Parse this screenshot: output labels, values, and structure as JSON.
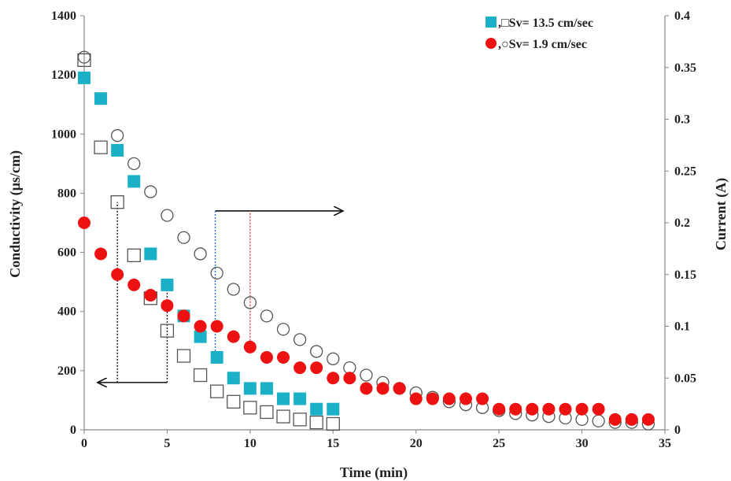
{
  "chart_data": {
    "type": "scatter",
    "title": "",
    "xlabel": "Time (min)",
    "ylabel_left": "Conductivity (µs/cm)",
    "ylabel_right": "Current (A)",
    "xlim": [
      0,
      35
    ],
    "ylim_left": [
      0,
      1400
    ],
    "ylim_right": [
      0,
      0.4
    ],
    "x_ticks": [
      "0",
      "5",
      "10",
      "15",
      "20",
      "25",
      "30",
      "35"
    ],
    "y_left_ticks": [
      "0",
      "200",
      "400",
      "600",
      "800",
      "1000",
      "1200",
      "1400"
    ],
    "y_right_ticks": [
      "0",
      "0.05",
      "0.1",
      "0.15",
      "0.2",
      "0.25",
      "0.3",
      "0.35",
      "0.4"
    ],
    "grid": false,
    "legend_position": "top-right",
    "legend": [
      {
        "text": ",□Sv= 13.5 cm/sec",
        "filled_marker": "square"
      },
      {
        "text": ",○Sv= 1.9 cm/sec",
        "filled_marker": "circle"
      }
    ],
    "colors": {
      "teal": "#1ab0c8",
      "red": "#ee1111",
      "open_marker": "#555555",
      "axis": "#888888",
      "arrow": "#111111",
      "blue_dash": "#2b6fd6",
      "red_dash": "#ee3333",
      "black_dash": "#111111"
    },
    "series": [
      {
        "marker": "filled-square",
        "axis": "left",
        "x": [
          0,
          1,
          2,
          3,
          4,
          5,
          6,
          7,
          8,
          9,
          10,
          11,
          12,
          13,
          14,
          15
        ],
        "values": [
          1190,
          1120,
          945,
          840,
          595,
          490,
          385,
          315,
          245,
          175,
          140,
          140,
          105,
          105,
          70,
          70
        ]
      },
      {
        "marker": "open-square",
        "axis": "left",
        "x": [
          0,
          1,
          2,
          3,
          4,
          5,
          6,
          7,
          8,
          9,
          10,
          11,
          12,
          13,
          14,
          15
        ],
        "values": [
          1250,
          955,
          770,
          590,
          445,
          335,
          250,
          185,
          130,
          95,
          75,
          60,
          45,
          35,
          25,
          20
        ]
      },
      {
        "marker": "filled-circle",
        "axis": "left",
        "x": [
          0,
          1,
          2,
          3,
          4,
          5,
          6,
          7,
          8,
          9,
          10,
          11,
          12,
          13,
          14,
          15,
          16,
          17,
          18,
          19,
          20,
          21,
          22,
          23,
          24,
          25,
          26,
          27,
          28,
          29,
          30,
          31,
          32,
          33,
          34
        ],
        "values": [
          700,
          595,
          525,
          490,
          455,
          420,
          385,
          350,
          350,
          315,
          280,
          245,
          245,
          210,
          210,
          175,
          175,
          140,
          140,
          140,
          105,
          105,
          105,
          105,
          105,
          70,
          70,
          70,
          70,
          70,
          70,
          70,
          35,
          35,
          35
        ]
      },
      {
        "marker": "open-circle",
        "axis": "left",
        "x": [
          0,
          2,
          3,
          4,
          5,
          6,
          7,
          8,
          9,
          10,
          11,
          12,
          13,
          14,
          15,
          16,
          17,
          18,
          19,
          20,
          21,
          22,
          23,
          24,
          25,
          26,
          27,
          28,
          29,
          30,
          31,
          32,
          33,
          34
        ],
        "values": [
          1260,
          995,
          900,
          805,
          725,
          650,
          595,
          530,
          475,
          430,
          385,
          340,
          305,
          265,
          240,
          210,
          185,
          160,
          140,
          125,
          110,
          95,
          85,
          75,
          65,
          55,
          50,
          45,
          40,
          35,
          30,
          25,
          25,
          20
        ]
      }
    ],
    "annotations": [
      {
        "type": "arrow",
        "x_from": 7.9,
        "x_to": 15.6,
        "y": 740,
        "direction": "right"
      },
      {
        "type": "arrow",
        "x_from": 5,
        "x_to": 0.8,
        "y": 160,
        "direction": "left"
      },
      {
        "type": "dashed_line",
        "x": 2,
        "y_from": 160,
        "y_to": 770,
        "color_key": "black_dash"
      },
      {
        "type": "dashed_line",
        "x": 5,
        "y_from": 160,
        "y_to": 490,
        "color_key": "black_dash"
      },
      {
        "type": "dashed_line",
        "x": 7.9,
        "y_from": 245,
        "y_to": 740,
        "color_key": "blue_dash"
      },
      {
        "type": "dashed_line",
        "x": 10,
        "y_from": 280,
        "y_to": 740,
        "color_key": "red_dash"
      }
    ]
  }
}
